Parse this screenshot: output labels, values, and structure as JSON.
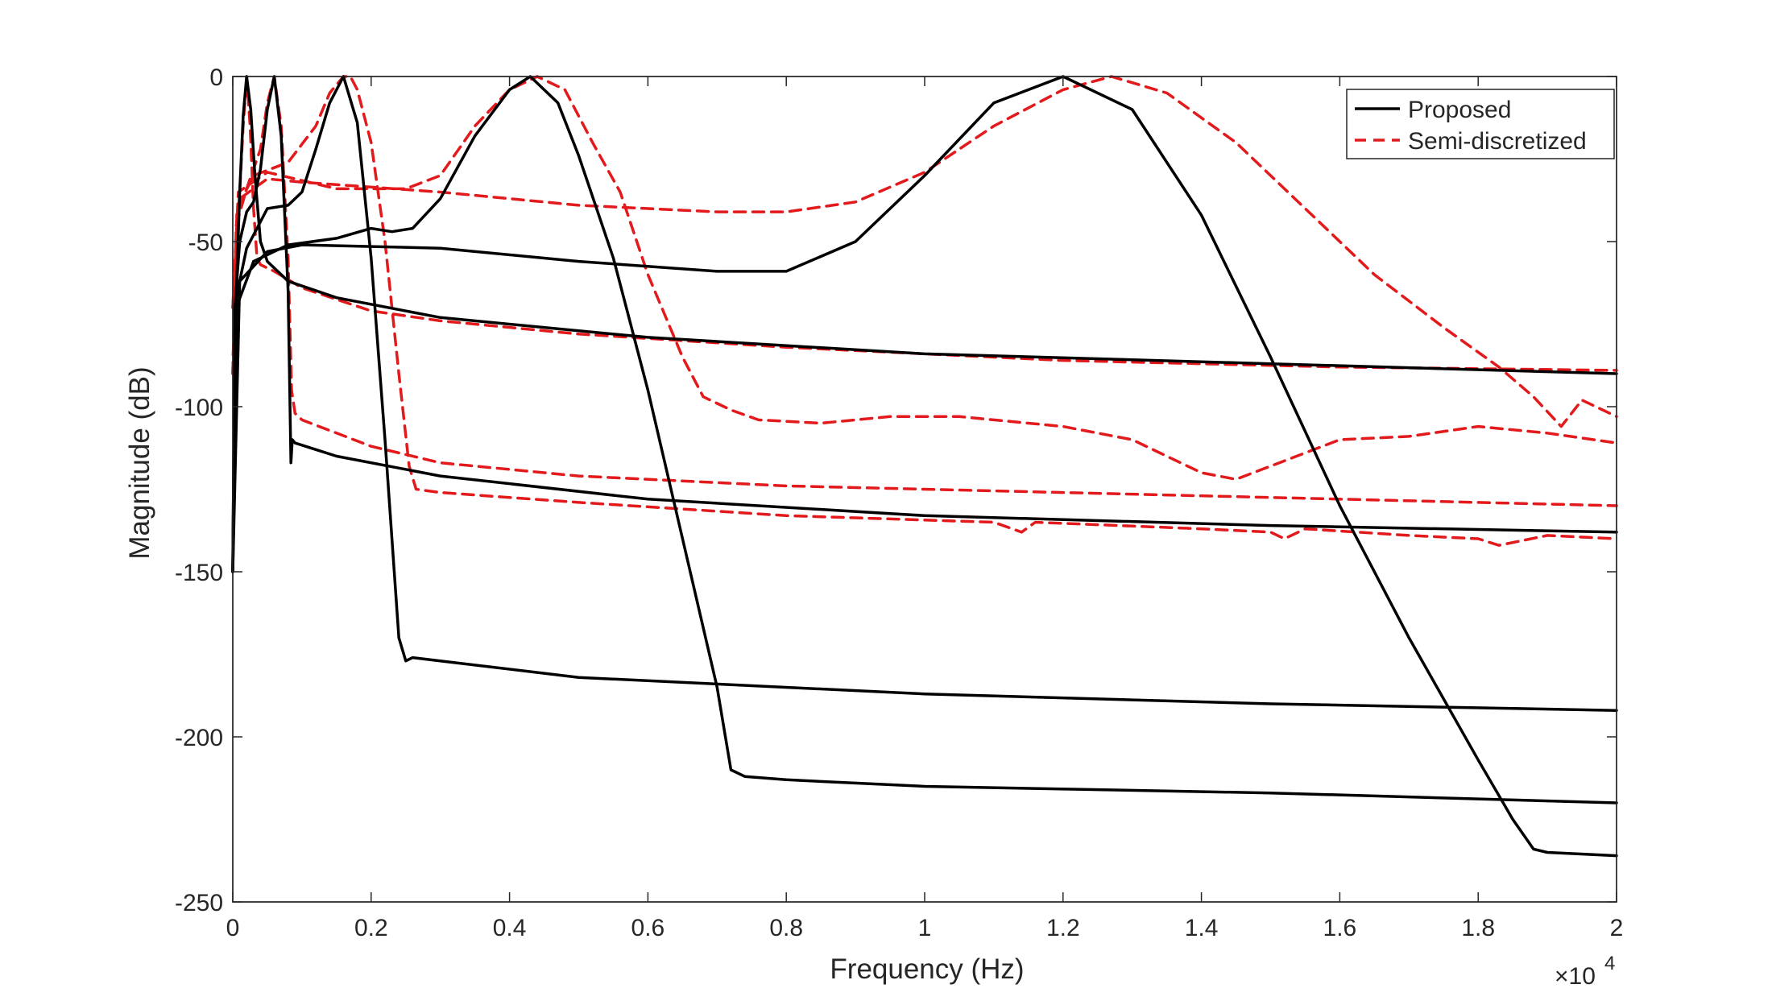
{
  "chart_data": {
    "type": "line",
    "title": "",
    "xlabel": "Frequency (Hz)",
    "ylabel": "Magnitude (dB)",
    "xlim": [
      0,
      20000
    ],
    "ylim": [
      -250,
      0
    ],
    "x_multiplier_label": "×10",
    "x_multiplier_exponent": "4",
    "xticks": [
      0,
      2000,
      4000,
      6000,
      8000,
      10000,
      12000,
      14000,
      16000,
      18000,
      20000
    ],
    "xtick_labels": [
      "0",
      "0.2",
      "0.4",
      "0.6",
      "0.8",
      "1",
      "1.2",
      "1.4",
      "1.6",
      "1.8",
      "2"
    ],
    "yticks": [
      0,
      -50,
      -100,
      -150,
      -200,
      -250
    ],
    "ytick_labels": [
      "0",
      "-50",
      "-100",
      "-150",
      "-200",
      "-250"
    ],
    "grid": false,
    "legend": {
      "location": "top-right",
      "entries": [
        {
          "label": "Proposed",
          "color": "#000000",
          "style": "solid"
        },
        {
          "label": "Semi-discretized",
          "color": "#e31a1c",
          "style": "dashed"
        }
      ]
    },
    "series": [
      {
        "name": "Proposed",
        "group": "Proposed",
        "center_hz": 200,
        "x": [
          0,
          20,
          60,
          100,
          150,
          200,
          260,
          320,
          400,
          500,
          800,
          1500,
          3000,
          6000,
          10000,
          15000,
          20000
        ],
        "y": [
          -150,
          -100,
          -60,
          -35,
          -12,
          0,
          -10,
          -30,
          -50,
          -56,
          -62,
          -67,
          -73,
          -79,
          -84,
          -87,
          -90
        ]
      },
      {
        "name": "Proposed",
        "group": "Proposed",
        "center_hz": 600,
        "x": [
          0,
          30,
          100,
          200,
          300,
          400,
          500,
          600,
          700,
          800,
          840,
          860,
          900,
          1500,
          3000,
          6000,
          10000,
          15000,
          20000
        ],
        "y": [
          -150,
          -70,
          -50,
          -41,
          -38,
          -28,
          -10,
          0,
          -18,
          -65,
          -117,
          -110,
          -111,
          -115,
          -121,
          -128,
          -133,
          -136,
          -138
        ]
      },
      {
        "name": "Proposed",
        "group": "Proposed",
        "center_hz": 1600,
        "x": [
          0,
          40,
          200,
          500,
          800,
          1000,
          1200,
          1400,
          1600,
          1800,
          2000,
          2200,
          2400,
          2500,
          2600,
          3000,
          5000,
          10000,
          15000,
          20000
        ],
        "y": [
          -150,
          -68,
          -52,
          -40,
          -39,
          -35,
          -22,
          -8,
          0,
          -14,
          -55,
          -110,
          -170,
          -177,
          -176,
          -177,
          -182,
          -187,
          -190,
          -192
        ]
      },
      {
        "name": "Proposed",
        "group": "Proposed",
        "center_hz": 4300,
        "x": [
          0,
          50,
          300,
          800,
          1500,
          2000,
          2300,
          2600,
          3000,
          3500,
          4000,
          4300,
          4700,
          5000,
          5500,
          6000,
          6500,
          7000,
          7200,
          7400,
          8000,
          10000,
          15000,
          20000
        ],
        "y": [
          -150,
          -70,
          -56,
          -51,
          -49,
          -46,
          -47,
          -46,
          -37,
          -18,
          -4,
          0,
          -8,
          -24,
          -55,
          -95,
          -140,
          -185,
          -210,
          -212,
          -213,
          -215,
          -217,
          -220
        ]
      },
      {
        "name": "Proposed",
        "group": "Proposed",
        "center_hz": 12000,
        "x": [
          0,
          100,
          500,
          1000,
          3000,
          5000,
          7000,
          8000,
          9000,
          10000,
          11000,
          12000,
          13000,
          14000,
          15000,
          16000,
          17000,
          18000,
          18500,
          18800,
          19000,
          20000
        ],
        "y": [
          -150,
          -62,
          -53,
          -51,
          -52,
          -56,
          -59,
          -59,
          -50,
          -30,
          -8,
          0,
          -10,
          -42,
          -85,
          -130,
          -170,
          -207,
          -225,
          -234,
          -235,
          -236
        ]
      },
      {
        "name": "Semi-discretized",
        "group": "Semi-discretized",
        "center_hz": 200,
        "x": [
          0,
          40,
          100,
          150,
          200,
          250,
          300,
          350,
          400,
          600,
          1000,
          2000,
          3000,
          5000,
          8000,
          12000,
          16000,
          20000
        ],
        "y": [
          -90,
          -55,
          -35,
          -15,
          0,
          -15,
          -40,
          -55,
          -57,
          -59,
          -64,
          -71,
          -74,
          -78,
          -82,
          -86,
          -88,
          -89
        ]
      },
      {
        "name": "Semi-discretized",
        "group": "Semi-discretized",
        "center_hz": 600,
        "x": [
          0,
          50,
          200,
          400,
          500,
          600,
          700,
          800,
          850,
          900,
          1000,
          2000,
          3000,
          5000,
          8000,
          12000,
          16000,
          20000
        ],
        "y": [
          -90,
          -45,
          -34,
          -22,
          -8,
          0,
          -15,
          -55,
          -95,
          -102,
          -104,
          -112,
          -117,
          -121,
          -124,
          -126,
          -128,
          -130
        ]
      },
      {
        "name": "Semi-discretized",
        "group": "Semi-discretized",
        "center_hz": 1700,
        "x": [
          0,
          60,
          300,
          800,
          1200,
          1400,
          1600,
          1700,
          1800,
          2000,
          2200,
          2400,
          2550,
          2650,
          3000,
          5000,
          8000,
          11000,
          11400,
          11600,
          14000,
          15000,
          15200,
          15500,
          17000,
          18000,
          18300,
          19000,
          20000
        ],
        "y": [
          -90,
          -40,
          -30,
          -26,
          -15,
          -5,
          0,
          0,
          -4,
          -20,
          -50,
          -90,
          -118,
          -125,
          -126,
          -129,
          -133,
          -135,
          -138,
          -135,
          -137,
          -138,
          -140,
          -137,
          -139,
          -140,
          -142,
          -139,
          -140
        ]
      },
      {
        "name": "Semi-discretized",
        "group": "Semi-discretized",
        "center_hz": 4500,
        "x": [
          0,
          80,
          500,
          1500,
          2500,
          3000,
          3500,
          4000,
          4400,
          4800,
          5200,
          5600,
          6000,
          6500,
          6800,
          7200,
          7600,
          8500,
          9500,
          10500,
          12000,
          13000,
          14000,
          14500,
          15000,
          16000,
          17000,
          18000,
          19000,
          20000
        ],
        "y": [
          -70,
          -35,
          -29,
          -34,
          -34,
          -30,
          -15,
          -4,
          0,
          -4,
          -20,
          -35,
          -60,
          -85,
          -97,
          -101,
          -104,
          -105,
          -103,
          -103,
          -106,
          -110,
          -120,
          -122,
          -118,
          -110,
          -109,
          -106,
          -108,
          -111
        ]
      },
      {
        "name": "Semi-discretized",
        "group": "Semi-discretized",
        "center_hz": 12700,
        "x": [
          0,
          100,
          500,
          1000,
          3000,
          5000,
          7000,
          8000,
          9000,
          10000,
          11000,
          12000,
          12700,
          13500,
          14500,
          15500,
          16500,
          17500,
          18300,
          18800,
          19200,
          19500,
          20000
        ],
        "y": [
          -70,
          -37,
          -31,
          -32,
          -35,
          -39,
          -41,
          -41,
          -38,
          -29,
          -15,
          -4,
          0,
          -5,
          -20,
          -40,
          -60,
          -76,
          -88,
          -97,
          -106,
          -98,
          -103
        ]
      }
    ]
  }
}
